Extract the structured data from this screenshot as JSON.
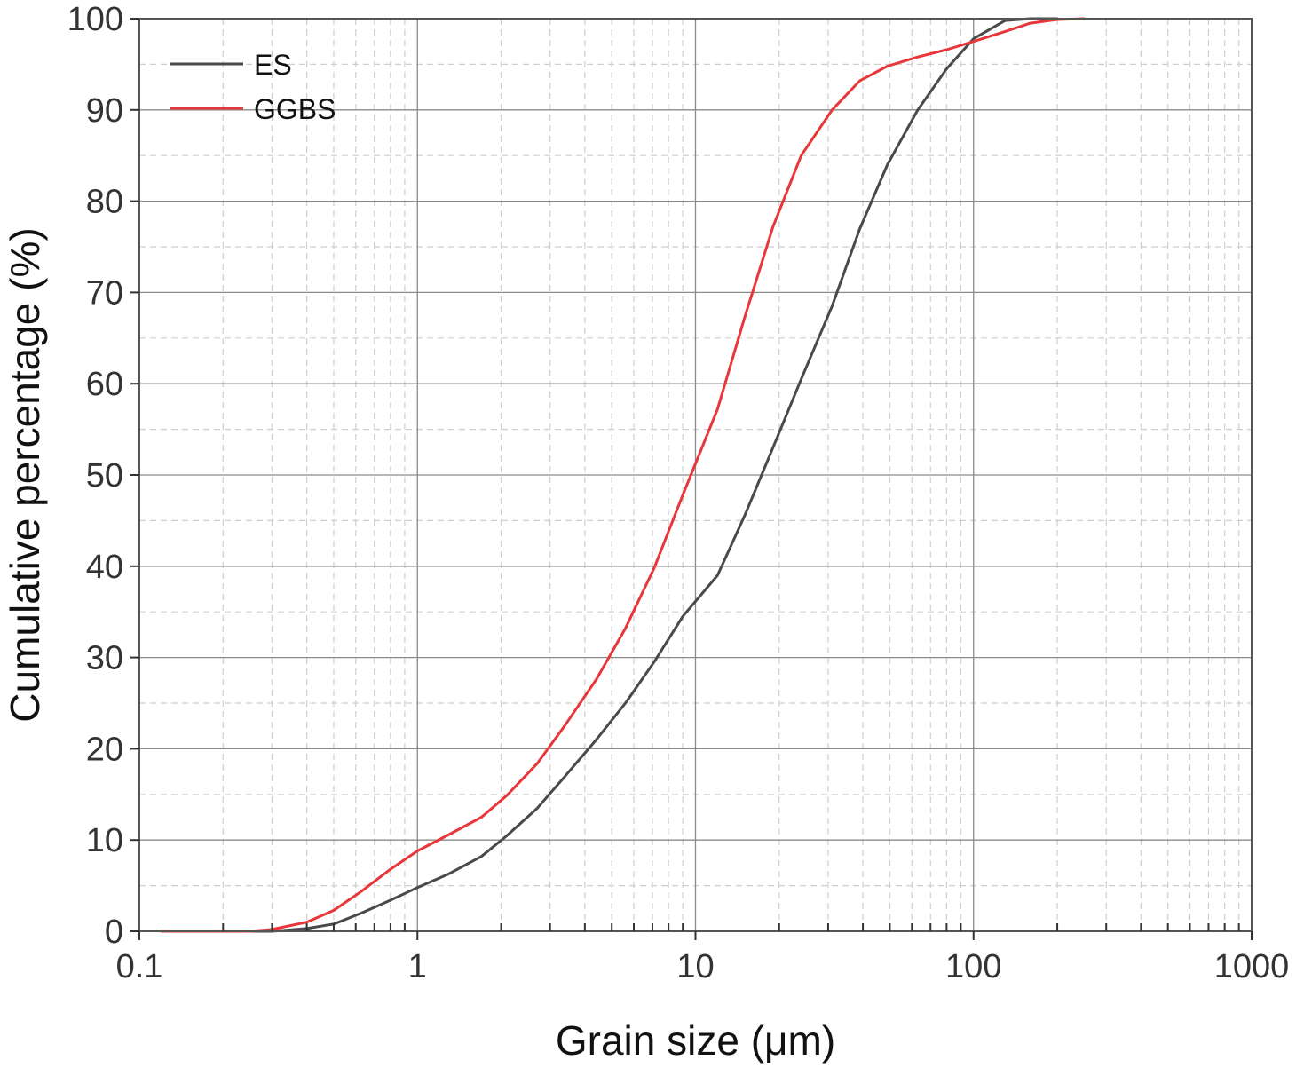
{
  "chart_data": {
    "type": "line",
    "title": "",
    "xlabel": "Grain size (μm)",
    "ylabel": "Cumulative percentage (%)",
    "xscale": "log",
    "xlim": [
      0.1,
      1000
    ],
    "ylim": [
      0,
      100
    ],
    "xticks": [
      0.1,
      1,
      10,
      100,
      1000
    ],
    "xtick_labels": [
      "0.1",
      "1",
      "10",
      "100",
      "1000"
    ],
    "yticks": [
      0,
      10,
      20,
      30,
      40,
      50,
      60,
      70,
      80,
      90,
      100
    ],
    "ytick_labels": [
      "0",
      "10",
      "20",
      "30",
      "40",
      "50",
      "60",
      "70",
      "80",
      "90",
      "100"
    ],
    "grid": true,
    "legend_position": "top-left",
    "series": [
      {
        "name": "ES",
        "color": "#4a4a4a",
        "x": [
          0.12,
          0.3,
          0.4,
          0.5,
          0.63,
          0.8,
          1.0,
          1.3,
          1.7,
          2.1,
          2.7,
          3.4,
          4.4,
          5.6,
          7.1,
          9.0,
          12,
          15,
          19,
          24,
          31,
          39,
          49,
          63,
          80,
          100,
          130,
          160,
          200
        ],
        "y": [
          0,
          0,
          0.3,
          0.8,
          2.0,
          3.4,
          4.8,
          6.3,
          8.2,
          10.5,
          13.5,
          17.0,
          21.0,
          25.0,
          29.5,
          34.5,
          39.0,
          45.5,
          53.0,
          60.5,
          68.5,
          77.0,
          84.0,
          90.0,
          94.5,
          97.8,
          99.8,
          100,
          100
        ]
      },
      {
        "name": "GGBS",
        "color": "#e8373a",
        "x": [
          0.12,
          0.25,
          0.3,
          0.4,
          0.5,
          0.63,
          0.8,
          1.0,
          1.3,
          1.7,
          2.1,
          2.7,
          3.4,
          4.4,
          5.6,
          7.1,
          9.0,
          12,
          15,
          19,
          24,
          31,
          39,
          49,
          63,
          80,
          100,
          130,
          160,
          200,
          250
        ],
        "y": [
          0,
          0,
          0.2,
          1.0,
          2.3,
          4.4,
          6.8,
          8.8,
          10.6,
          12.5,
          14.9,
          18.4,
          22.6,
          27.6,
          33.2,
          39.8,
          47.8,
          57.2,
          67.2,
          77.2,
          85.0,
          90.0,
          93.2,
          94.8,
          95.8,
          96.6,
          97.5,
          98.6,
          99.5,
          99.9,
          100
        ]
      }
    ]
  }
}
